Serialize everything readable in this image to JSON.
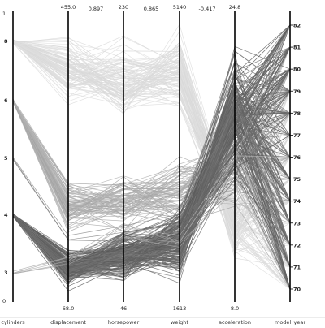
{
  "chart_data": {
    "type": "parallel_coordinates",
    "title": "",
    "line_count": 392,
    "axes": [
      {
        "name": "cylinders",
        "range": [
          "",
          "1"
        ],
        "ticks": [
          "8",
          "6",
          "5",
          "4",
          "3",
          "0"
        ]
      },
      {
        "name": "displacement",
        "range": [
          "68.0",
          "455.0"
        ],
        "top_extra": "0.897"
      },
      {
        "name": "horsepower",
        "range": [
          "46",
          "230"
        ],
        "top_extra": "0.865"
      },
      {
        "name": "weight",
        "range": [
          "1613",
          "5140"
        ],
        "top_extra": "-0.417"
      },
      {
        "name": "acceleration",
        "range": [
          "8.0",
          "24.8"
        ]
      },
      {
        "name": "model_year",
        "range": [
          "70",
          "82"
        ],
        "ticks": [
          "82",
          "81",
          "80",
          "79",
          "78",
          "77",
          "76",
          "75",
          "74",
          "73",
          "72",
          "71",
          "70"
        ]
      }
    ],
    "labels": {
      "cyl_top": "1",
      "cyl_bottom": "0",
      "disp_max": "455.0",
      "corr_disp_hp": "0.897",
      "hp_max": "230",
      "corr_hp_wt": "0.865",
      "wt_max": "5140",
      "corr_wt_acc": "-0.417",
      "acc_max": "24.8",
      "disp_min": "68.0",
      "hp_min": "46",
      "wt_min": "1613",
      "acc_min": "8.0"
    },
    "axis_names": [
      "cylinders",
      "displacement",
      "horsepower",
      "weight",
      "acceleration",
      "model_year"
    ],
    "cylinder_ticks": [
      "8",
      "6",
      "5",
      "4",
      "3"
    ],
    "year_ticks": [
      "82",
      "81",
      "80",
      "79",
      "78",
      "77",
      "76",
      "75",
      "74",
      "73",
      "72",
      "71",
      "70"
    ],
    "line_color_scheme": "grayscale-by-cylinders",
    "grid": false,
    "legend": "none"
  }
}
